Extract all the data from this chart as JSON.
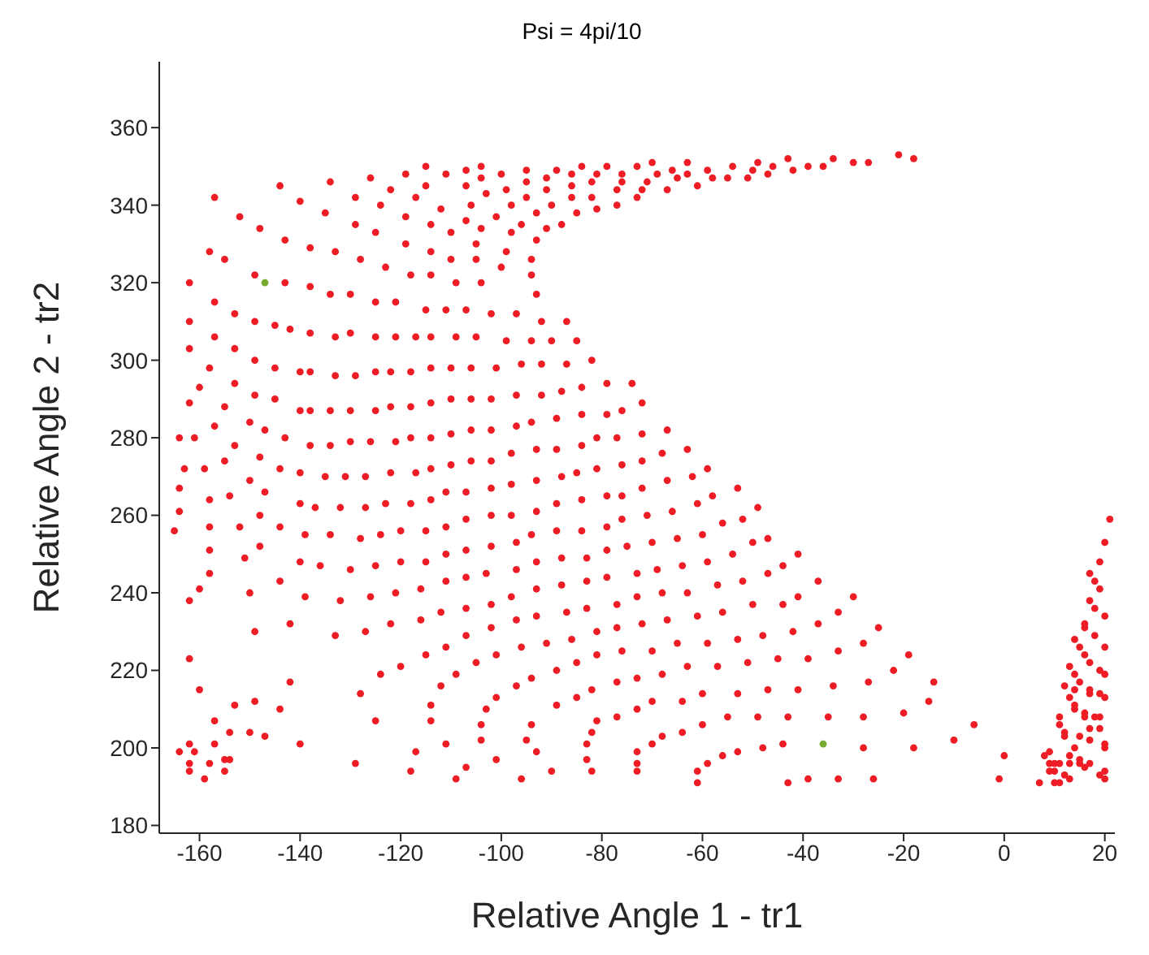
{
  "chart_data": {
    "type": "scatter",
    "title": "Psi = 4pi/10",
    "xlabel": "Relative Angle 1  -  tr1",
    "ylabel": "Relative Angle 2  -  tr2",
    "xlim": [
      -168,
      22
    ],
    "xticks": [
      -160,
      -140,
      -120,
      -100,
      -80,
      -60,
      -40,
      -20,
      0,
      20
    ],
    "ylim": [
      178,
      377
    ],
    "yticks": [
      180,
      200,
      220,
      240,
      260,
      280,
      300,
      320,
      340,
      360
    ],
    "marker": "circle",
    "series": [
      {
        "color": "#ee1c25",
        "x": [
          -115,
          -104,
          -84,
          -79,
          -73,
          -119,
          -111,
          -107,
          -100,
          -95,
          -89,
          -86,
          -81,
          -76,
          -126,
          -104,
          -91,
          -95,
          -82,
          -76,
          -144,
          -134,
          -122,
          -115,
          -107,
          -99,
          -91,
          -86,
          -77,
          -72,
          -157,
          -129,
          -117,
          -103,
          -95,
          -86,
          -82,
          -73,
          -140,
          -124,
          -106,
          -98,
          -90,
          -77,
          -112,
          -81,
          -93,
          -85,
          -135,
          -152,
          -119,
          -107,
          -101,
          -129,
          -114,
          -96,
          -88,
          -148,
          -125,
          -104,
          -91,
          -110,
          -98,
          -143,
          -93,
          -138,
          -119,
          -105,
          -133,
          -114,
          -99,
          -158,
          -128,
          -110,
          -94,
          -155,
          -105,
          -123,
          -118,
          -100,
          -94,
          -114,
          -149,
          -162,
          -143,
          -109,
          -104,
          -138,
          -134,
          -130,
          -93,
          -157,
          -125,
          -121,
          -115,
          -111,
          -107,
          -102,
          -153,
          -97,
          -162,
          -149,
          -92,
          -87,
          -145,
          -142,
          -138,
          -157,
          -133,
          -130,
          -125,
          -121,
          -117,
          -114,
          -109,
          -105,
          -99,
          -94,
          -90,
          -85,
          -162,
          -153,
          -158,
          -149,
          -145,
          -140,
          -138,
          -133,
          -129,
          -125,
          -122,
          -118,
          -114,
          -110,
          -106,
          -101,
          -96,
          -92,
          -87,
          -82,
          -160,
          -153,
          -79,
          -74,
          -162,
          -155,
          -149,
          -145,
          -140,
          -138,
          -134,
          -130,
          -125,
          -122,
          -118,
          -114,
          -110,
          -106,
          -102,
          -97,
          -92,
          -88,
          -84,
          -79,
          -76,
          -72,
          -164,
          -161,
          -157,
          -150,
          -147,
          -143,
          -138,
          -134,
          -130,
          -126,
          -121,
          -118,
          -114,
          -110,
          -106,
          -102,
          -97,
          -94,
          -89,
          -84,
          -81,
          -77,
          -72,
          -153,
          -155,
          -148,
          -163,
          -159,
          -144,
          -140,
          -135,
          -131,
          -127,
          -122,
          -117,
          -114,
          -110,
          -106,
          -102,
          -98,
          -93,
          -89,
          -84,
          -81,
          -76,
          -72,
          -164,
          -150,
          -147,
          -154,
          -111,
          -107,
          -102,
          -98,
          -93,
          -88,
          -85,
          -79,
          -76,
          -72,
          -70,
          -69,
          -71,
          -66,
          -65,
          -63,
          -63,
          -67,
          -61,
          -59,
          -58,
          -55,
          -54,
          -51,
          -50,
          -49,
          -47,
          -46,
          -43,
          -42,
          -39,
          -36,
          -34,
          -30,
          -27,
          -21,
          -18,
          -67,
          -68,
          -63,
          -67,
          -62,
          -59,
          -53,
          -58,
          -158,
          -140,
          -137,
          -132,
          -127,
          -123,
          -118,
          -114,
          -164,
          -148,
          -144,
          -165,
          -158,
          -152,
          -93,
          -89,
          -84,
          -71,
          -76,
          -102,
          -98,
          -107,
          -111,
          -139,
          -134,
          -128,
          -124,
          -120,
          -115,
          -94,
          -89,
          -84,
          -79,
          -158,
          -148,
          -151,
          -140,
          -136,
          -130,
          -125,
          -120,
          -115,
          -111,
          -107,
          -102,
          -97,
          -93,
          -88,
          -83,
          -79,
          -75,
          -158,
          -144,
          -111,
          -107,
          -103,
          -97,
          -93,
          -88,
          -83,
          -79,
          -73,
          -160,
          -162,
          -150,
          -139,
          -132,
          -126,
          -121,
          -116,
          -112,
          -107,
          -102,
          -98,
          -87,
          -83,
          -77,
          -73,
          -149,
          -142,
          -133,
          -127,
          -122,
          -116,
          -107,
          -102,
          -97,
          -93,
          -77,
          -72,
          -111,
          -115,
          -101,
          -96,
          -91,
          -86,
          -81,
          -105,
          -85,
          -81,
          -76,
          -162,
          -120,
          -124,
          -109,
          -89,
          -112,
          -97,
          -94,
          -77,
          -73,
          -142,
          -160,
          -128,
          -114,
          -101,
          -89,
          -85,
          -82,
          -153,
          -149,
          -144,
          -103,
          -73,
          -157,
          -125,
          -114,
          -104,
          -94,
          -81,
          -77,
          -154,
          -150,
          -147,
          -82,
          -162,
          -157,
          -111,
          -104,
          -95,
          -83,
          -140,
          -164,
          -161,
          -117,
          -73,
          -93,
          -162,
          -158,
          -155,
          -154,
          -129,
          -101,
          -83,
          -73,
          -162,
          -155,
          -118,
          -107,
          -82,
          -73,
          -159,
          -109,
          -96,
          -90,
          -61,
          -49,
          -66,
          -56,
          -52,
          -70,
          -65,
          -60,
          -50,
          -47,
          -54,
          -41,
          -69,
          -64,
          -59,
          -47,
          -44,
          -57,
          -52,
          -37,
          -68,
          -63,
          -50,
          -44,
          -41,
          -30,
          -67,
          -61,
          -56,
          -37,
          -33,
          -25,
          -70,
          -65,
          -59,
          -53,
          -48,
          -42,
          -33,
          -28,
          -19,
          -68,
          -63,
          -57,
          -51,
          -45,
          -39,
          -22,
          -14,
          -34,
          -27,
          -70,
          -64,
          -60,
          -53,
          -47,
          -41,
          -15,
          -55,
          -49,
          -43,
          -35,
          -28,
          -20,
          -6,
          -64,
          -60,
          -68,
          -70,
          -10,
          -48,
          -44,
          -28,
          -18,
          -53,
          -56,
          -59,
          0,
          -61,
          -61,
          -43,
          -39,
          -33,
          -26,
          -1,
          7,
          9,
          8,
          9,
          10,
          11,
          9,
          10,
          10,
          11,
          12,
          13,
          13,
          13,
          15,
          15,
          17,
          16,
          14,
          15,
          17,
          12,
          12,
          11,
          11,
          14,
          14,
          13,
          16,
          16,
          18,
          19,
          17,
          19,
          20,
          20,
          19,
          20,
          20,
          17,
          17,
          19,
          20,
          14,
          15,
          12,
          13,
          14,
          17,
          16,
          15,
          14,
          16,
          16,
          18,
          19,
          20,
          20,
          17,
          18,
          20,
          17,
          18,
          19,
          19,
          20,
          21
        ],
        "values": [
          350,
          350,
          350,
          350,
          350,
          348,
          348,
          349,
          348,
          349,
          349,
          348,
          348,
          348,
          347,
          347,
          347,
          346,
          346,
          346,
          345,
          346,
          344,
          345,
          345,
          344,
          344,
          345,
          344,
          344,
          342,
          342,
          342,
          343,
          342,
          342,
          342,
          342,
          341,
          340,
          340,
          340,
          340,
          340,
          339,
          339,
          338,
          338,
          338,
          337,
          337,
          336,
          337,
          335,
          335,
          335,
          335,
          334,
          333,
          334,
          334,
          333,
          333,
          331,
          331,
          329,
          330,
          330,
          328,
          328,
          328,
          328,
          326,
          326,
          326,
          326,
          326,
          324,
          322,
          324,
          322,
          322,
          322,
          320,
          320,
          320,
          320,
          319,
          317,
          317,
          317,
          315,
          315,
          315,
          313,
          313,
          313,
          312,
          312,
          312,
          310,
          310,
          310,
          310,
          309,
          308,
          307,
          306,
          306,
          307,
          306,
          306,
          306,
          306,
          306,
          306,
          305,
          305,
          305,
          305,
          303,
          303,
          298,
          300,
          298,
          297,
          297,
          296,
          296,
          297,
          297,
          297,
          298,
          298,
          298,
          298,
          299,
          299,
          299,
          300,
          293,
          294,
          294,
          294,
          289,
          288,
          291,
          290,
          287,
          287,
          287,
          287,
          287,
          288,
          288,
          289,
          290,
          290,
          290,
          291,
          291,
          292,
          293,
          286,
          287,
          289,
          280,
          280,
          283,
          284,
          282,
          280,
          278,
          278,
          279,
          279,
          279,
          280,
          280,
          281,
          282,
          282,
          283,
          284,
          285,
          286,
          280,
          280,
          281,
          278,
          274,
          275,
          272,
          272,
          272,
          271,
          270,
          270,
          270,
          271,
          271,
          272,
          273,
          274,
          274,
          276,
          277,
          277,
          278,
          272,
          273,
          274,
          267,
          269,
          266,
          265,
          266,
          266,
          267,
          268,
          269,
          270,
          271,
          265,
          265,
          267,
          351,
          348,
          346,
          349,
          347,
          351,
          348,
          344,
          345,
          349,
          347,
          347,
          350,
          347,
          349,
          351,
          348,
          350,
          352,
          349,
          350,
          350,
          352,
          351,
          351,
          353,
          352,
          282,
          276,
          277,
          269,
          270,
          272,
          267,
          265,
          264,
          263,
          262,
          262,
          262,
          263,
          263,
          264,
          261,
          260,
          257,
          256,
          257,
          257,
          261,
          263,
          264,
          260,
          259,
          260,
          260,
          259,
          257,
          255,
          255,
          254,
          255,
          256,
          256,
          255,
          256,
          256,
          257,
          251,
          252,
          249,
          248,
          247,
          246,
          247,
          248,
          248,
          250,
          251,
          252,
          253,
          248,
          249,
          249,
          251,
          252,
          245,
          243,
          243,
          244,
          245,
          246,
          241,
          242,
          243,
          244,
          245,
          241,
          238,
          240,
          239,
          238,
          239,
          240,
          241,
          235,
          236,
          237,
          239,
          235,
          236,
          237,
          239,
          230,
          232,
          229,
          230,
          232,
          233,
          229,
          231,
          233,
          234,
          231,
          232,
          226,
          224,
          224,
          226,
          227,
          228,
          230,
          222,
          222,
          224,
          225,
          223,
          221,
          219,
          219,
          220,
          216,
          216,
          218,
          217,
          218,
          217,
          215,
          214,
          211,
          213,
          211,
          213,
          215,
          211,
          212,
          210,
          210,
          210,
          207,
          207,
          207,
          206,
          206,
          207,
          208,
          204,
          204,
          203,
          204,
          201,
          201,
          201,
          202,
          202,
          201,
          201,
          199,
          199,
          199,
          199,
          199,
          196,
          196,
          197,
          197,
          196,
          197,
          197,
          196,
          194,
          194,
          194,
          195,
          194,
          194,
          192,
          192,
          192,
          194,
          263,
          262,
          261,
          258,
          259,
          253,
          254,
          255,
          253,
          254,
          250,
          250,
          246,
          247,
          248,
          245,
          247,
          242,
          243,
          243,
          240,
          240,
          237,
          237,
          239,
          239,
          233,
          234,
          235,
          232,
          235,
          231,
          225,
          227,
          227,
          228,
          229,
          230,
          225,
          227,
          224,
          219,
          221,
          221,
          222,
          223,
          223,
          220,
          217,
          216,
          217,
          212,
          212,
          214,
          214,
          215,
          215,
          212,
          208,
          208,
          208,
          208,
          208,
          209,
          206,
          204,
          206,
          203,
          201,
          202,
          200,
          201,
          200,
          200,
          199,
          198,
          196,
          198,
          194,
          191,
          191,
          192,
          192,
          192,
          192,
          191,
          199,
          198,
          196,
          196,
          196,
          194,
          194,
          191,
          191,
          193,
          192,
          196,
          198,
          197,
          196,
          196,
          195,
          200,
          203,
          202,
          203,
          204,
          206,
          208,
          210,
          211,
          213,
          208,
          209,
          208,
          208,
          205,
          205,
          201,
          200,
          193,
          194,
          192,
          214,
          215,
          214,
          213,
          215,
          217,
          216,
          221,
          219,
          222,
          224,
          226,
          228,
          231,
          232,
          229,
          220,
          219,
          226,
          238,
          236,
          234,
          245,
          243,
          248,
          241,
          253,
          259
        ]
      },
      {
        "color": "#77ac30",
        "x": [
          -147,
          -36
        ],
        "values": [
          320,
          201
        ]
      }
    ]
  }
}
